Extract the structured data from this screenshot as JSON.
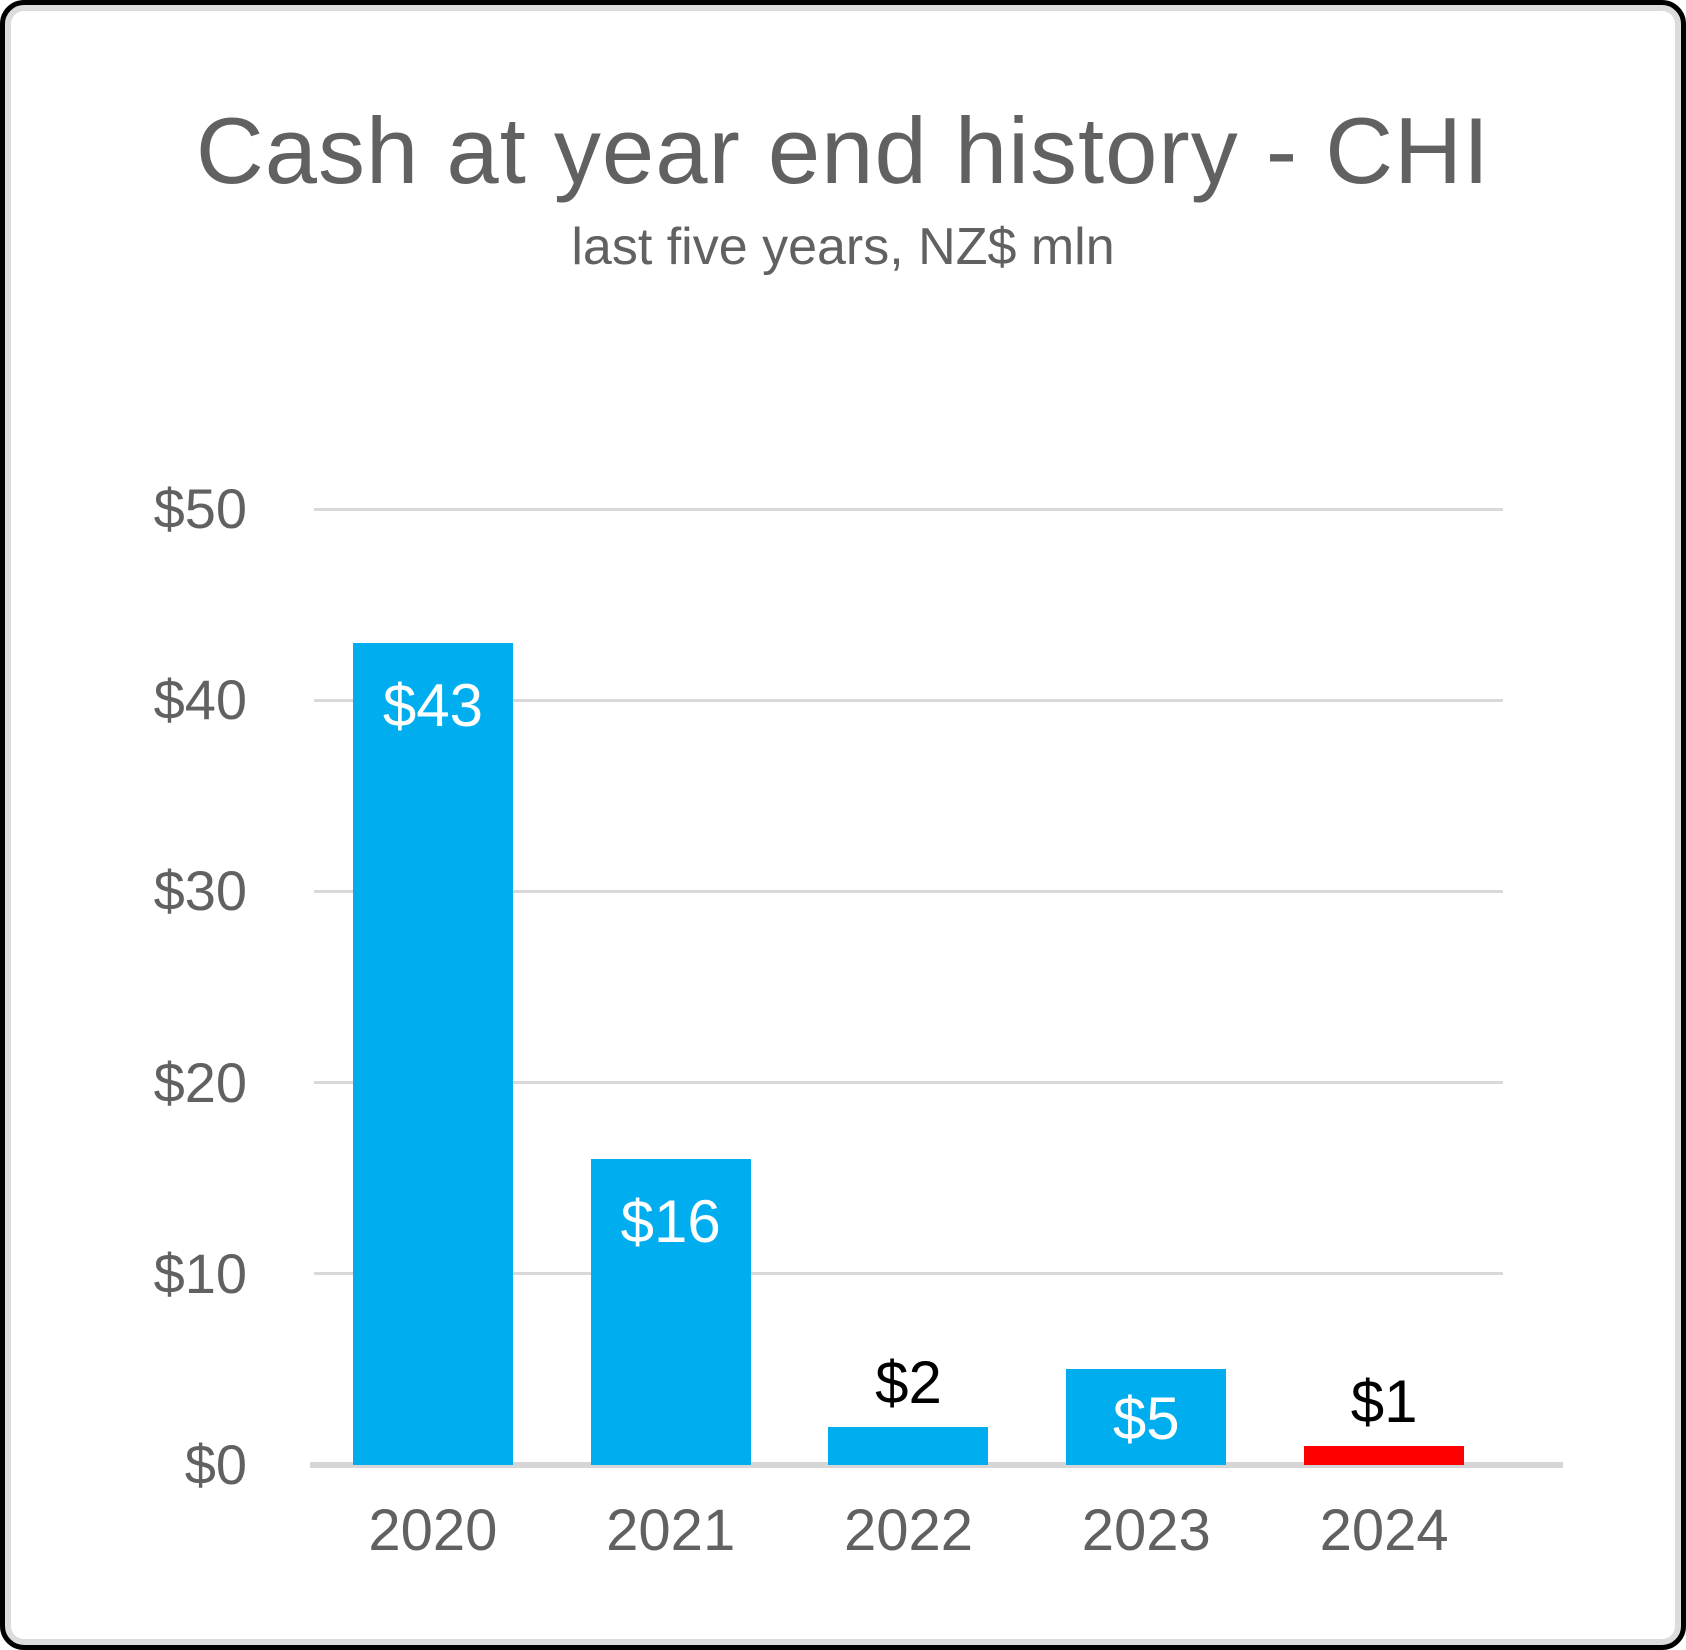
{
  "chart_data": {
    "type": "bar",
    "title": "Cash at year end history - CHI",
    "subtitle": "last five years, NZ$ mln",
    "categories": [
      "2020",
      "2021",
      "2022",
      "2023",
      "2024"
    ],
    "values": [
      43,
      16,
      2,
      5,
      1
    ],
    "bar_labels": [
      "$43",
      "$16",
      "$2",
      "$5",
      "$1"
    ],
    "bar_colors": [
      "#00AEEF",
      "#00AEEF",
      "#00AEEF",
      "#00AEEF",
      "#FF0000"
    ],
    "label_placement": [
      "inside",
      "inside",
      "above",
      "inside",
      "above"
    ],
    "xlabel": "",
    "ylabel": "",
    "ylim": [
      0,
      50
    ],
    "yticks": [
      0,
      10,
      20,
      30,
      40,
      50
    ],
    "ytick_labels": [
      "$0",
      "$10",
      "$20",
      "$30",
      "$40",
      "$50"
    ],
    "grid": true,
    "legend": false,
    "colors": {
      "bar_blue": "#00AEEF",
      "bar_red": "#FF0000",
      "label_inside_text": "#FFFFFF",
      "label_above_text": "#000000",
      "axis_text": "#616161",
      "gridline": "#D9D9D9",
      "baseline": "#D6D6D6",
      "background": "#FFFFFF",
      "frame_border": "#000000"
    }
  }
}
